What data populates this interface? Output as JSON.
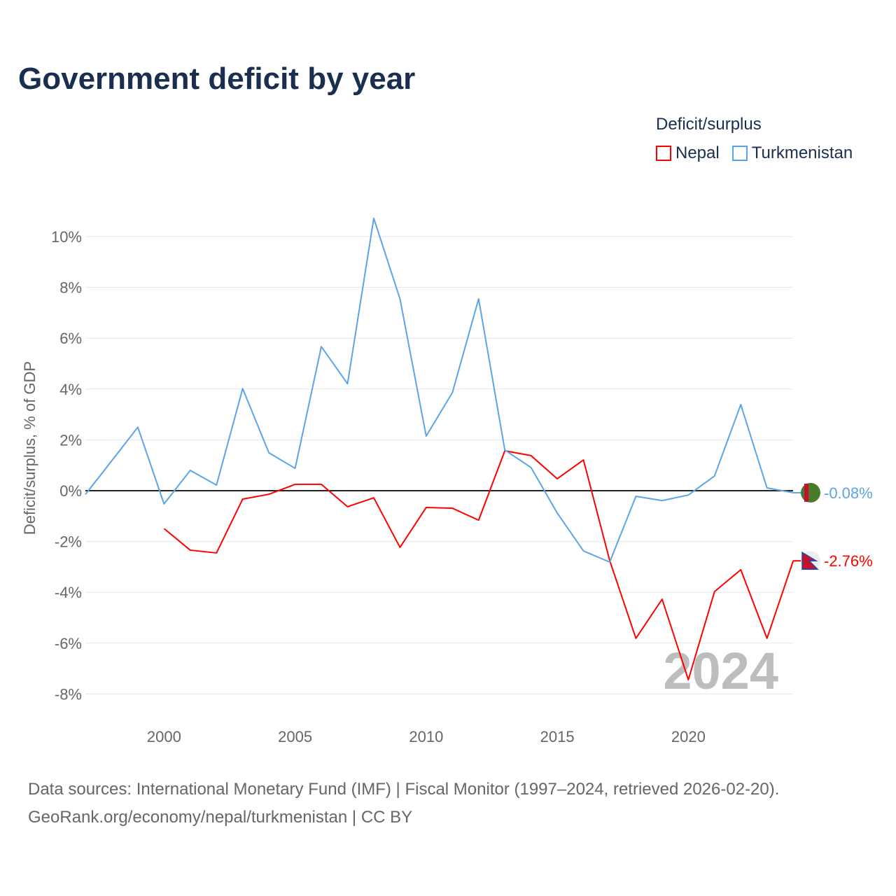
{
  "title": "Government deficit by year",
  "legend": {
    "title": "Deficit/surplus",
    "items": [
      {
        "label": "Nepal",
        "color": "#ff0000"
      },
      {
        "label": "Turkmenistan",
        "color": "#5ba4e8"
      }
    ]
  },
  "watermark_year": "2024",
  "footer": {
    "line1": "Data sources: International Monetary Fund (IMF) | Fiscal Monitor (1997–2024, retrieved 2026-02-20).",
    "line2": "GeoRank.org/economy/nepal/turkmenistan | CC BY"
  },
  "chart_data": {
    "type": "line",
    "title": "Government deficit by year",
    "xlabel": "",
    "ylabel": "Deficit/surplus, % of GDP",
    "xlim": [
      1997,
      2024
    ],
    "ylim": [
      -9,
      11
    ],
    "x_ticks": [
      2000,
      2005,
      2010,
      2015,
      2020
    ],
    "y_ticks": [
      10,
      8,
      6,
      4,
      2,
      0,
      -2,
      -4,
      -6,
      -8
    ],
    "y_tick_labels": [
      "10%",
      "8%",
      "6%",
      "4%",
      "2%",
      "0%",
      "-2%",
      "-4%",
      "-6%",
      "-8%"
    ],
    "grid": true,
    "legend_position": "top-right",
    "series": [
      {
        "name": "Nepal",
        "color": "#ff0000",
        "end_label": "-2.76%",
        "x": [
          2000,
          2001,
          2002,
          2003,
          2004,
          2005,
          2006,
          2007,
          2008,
          2009,
          2010,
          2011,
          2012,
          2013,
          2014,
          2015,
          2016,
          2017,
          2018,
          2019,
          2020,
          2021,
          2022,
          2023,
          2024
        ],
        "values": [
          -1.49,
          -2.34,
          -2.45,
          -0.33,
          -0.14,
          0.25,
          0.25,
          -0.63,
          -0.28,
          -2.23,
          -0.66,
          -0.69,
          -1.16,
          1.57,
          1.38,
          0.47,
          1.21,
          -2.75,
          -5.81,
          -4.27,
          -7.44,
          -3.97,
          -3.11,
          -5.81,
          -2.76
        ]
      },
      {
        "name": "Turkmenistan",
        "color": "#5ba4e8",
        "end_label": "-0.08%",
        "x": [
          1997,
          1998,
          1999,
          2000,
          2001,
          2002,
          2003,
          2004,
          2005,
          2006,
          2007,
          2008,
          2009,
          2010,
          2011,
          2012,
          2013,
          2014,
          2015,
          2016,
          2017,
          2018,
          2019,
          2020,
          2021,
          2022,
          2023,
          2024
        ],
        "values": [
          -0.15,
          1.17,
          2.5,
          -0.52,
          0.8,
          0.22,
          4.02,
          1.49,
          0.88,
          5.67,
          4.21,
          10.72,
          7.55,
          2.15,
          3.86,
          7.55,
          1.6,
          0.91,
          -0.88,
          -2.37,
          -2.81,
          -0.22,
          -0.39,
          -0.17,
          0.58,
          3.39,
          0.11,
          -0.08
        ]
      }
    ]
  }
}
